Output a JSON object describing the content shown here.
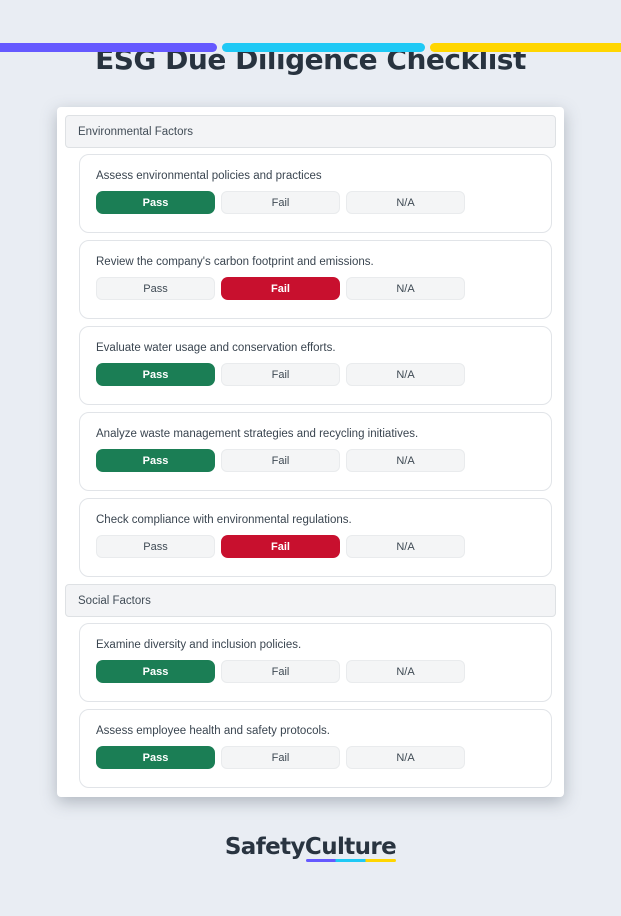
{
  "page": {
    "title": "ESG Due Diligence Checklist",
    "background_color": "#E9EDF3"
  },
  "top_bar": {
    "segments": [
      {
        "name": "purple-segment",
        "color": "#6559FF"
      },
      {
        "name": "cyan-segment",
        "color": "#1FC9F5"
      },
      {
        "name": "yellow-segment",
        "color": "#FFD600"
      }
    ]
  },
  "colors": {
    "pass_selected": "#1B7E55",
    "fail_selected": "#C8102E",
    "option_idle_bg": "#F4F5F6",
    "section_header_bg": "#F3F4F6",
    "title_text": "#28333F"
  },
  "response_options": [
    "Pass",
    "Fail",
    "N/A"
  ],
  "checklist": {
    "sections": [
      {
        "label": "Environmental Factors",
        "items": [
          {
            "question": "Assess environmental policies and practices",
            "selected": "Pass",
            "selected_index": 0
          },
          {
            "question": "Review the company's carbon footprint and emissions.",
            "selected": "Fail",
            "selected_index": 1
          },
          {
            "question": "Evaluate water usage and conservation efforts.",
            "selected": "Pass",
            "selected_index": 0
          },
          {
            "question": "Analyze waste management strategies and recycling initiatives.",
            "selected": "Pass",
            "selected_index": 0
          },
          {
            "question": "Check compliance with environmental regulations.",
            "selected": "Fail",
            "selected_index": 1
          }
        ]
      },
      {
        "label": "Social Factors",
        "items": [
          {
            "question": "Examine diversity and inclusion policies.",
            "selected": "Pass",
            "selected_index": 0
          },
          {
            "question": "Assess employee health and safety protocols.",
            "selected": "Pass",
            "selected_index": 0
          }
        ]
      }
    ]
  },
  "footer": {
    "logo_part1": "Safety",
    "logo_part2": "Culture"
  }
}
